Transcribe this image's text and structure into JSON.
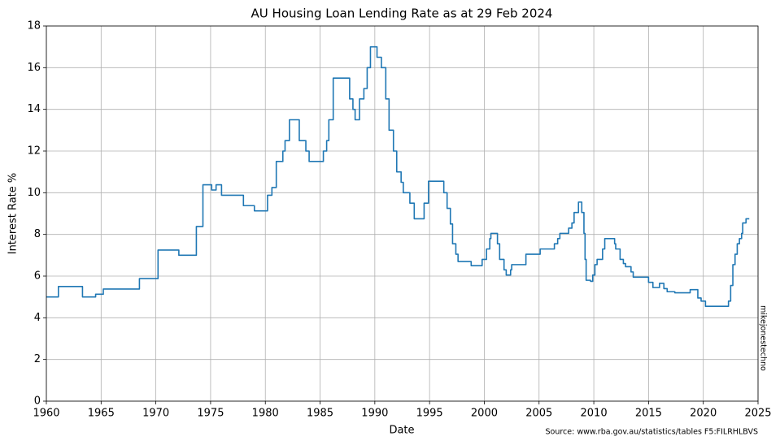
{
  "chart_data": {
    "type": "line",
    "drawstyle": "steps-post",
    "title": "AU Housing Loan Lending Rate as at 29 Feb 2024",
    "xlabel": "Date",
    "ylabel": "Interest Rate %",
    "source": "Source: www.rba.gov.au/statistics/tables F5:FILRHLBVS",
    "watermark": "mikejonestechno",
    "color": "#1f77b4",
    "grid": true,
    "xlim": [
      1960,
      2025
    ],
    "xticks": [
      1960,
      1965,
      1970,
      1975,
      1980,
      1985,
      1990,
      1995,
      2000,
      2005,
      2010,
      2015,
      2020,
      2025
    ],
    "ylim": [
      0,
      18
    ],
    "yticks": [
      0,
      2,
      4,
      6,
      8,
      10,
      12,
      14,
      16,
      18
    ],
    "x": [
      1960,
      1961.1,
      1963.3,
      1964.5,
      1965.2,
      1968.5,
      1970.2,
      1972.1,
      1973.7,
      1974.3,
      1975.1,
      1975.5,
      1976,
      1978,
      1979,
      1980.2,
      1980.6,
      1981,
      1981.6,
      1981.8,
      1982.2,
      1983.1,
      1983.7,
      1984,
      1985.3,
      1985.6,
      1985.8,
      1986.2,
      1987.7,
      1988,
      1988.2,
      1988.6,
      1989,
      1989.3,
      1989.6,
      1990.2,
      1990.6,
      1991,
      1991.3,
      1991.7,
      1992,
      1992.4,
      1992.6,
      1993.2,
      1993.6,
      1994.5,
      1994.9,
      1996.3,
      1996.6,
      1996.9,
      1997.1,
      1997.4,
      1997.6,
      1998.8,
      1999.8,
      2000.2,
      2000.5,
      2000.6,
      2001.2,
      2001.4,
      2001.8,
      2002,
      2002.4,
      2002.5,
      2003.8,
      2005.1,
      2006.4,
      2006.7,
      2006.9,
      2007.7,
      2008,
      2008.2,
      2008.6,
      2008.9,
      2009.1,
      2009.2,
      2009.3,
      2009.7,
      2009.9,
      2010.1,
      2010.3,
      2010.8,
      2011,
      2011.9,
      2012,
      2012.4,
      2012.7,
      2012.9,
      2013.4,
      2013.6,
      2015,
      2015.4,
      2016,
      2016.4,
      2016.7,
      2017.4,
      2018.8,
      2019.5,
      2019.8,
      2020.2,
      2022.3,
      2022.5,
      2022.7,
      2022.9,
      2023.1,
      2023.3,
      2023.5,
      2023.6,
      2023.9,
      2024.2
    ],
    "values": [
      5.0,
      5.5,
      5.0,
      5.13,
      5.38,
      5.88,
      7.25,
      7.0,
      8.38,
      10.38,
      10.13,
      10.38,
      9.88,
      9.38,
      9.13,
      9.88,
      10.25,
      11.5,
      12.0,
      12.5,
      13.5,
      12.5,
      12.0,
      11.5,
      12.0,
      12.5,
      13.5,
      15.5,
      14.5,
      14.0,
      13.5,
      14.5,
      15.0,
      16.0,
      17.0,
      16.5,
      16.0,
      14.5,
      13.0,
      12.0,
      11.0,
      10.5,
      10.0,
      9.5,
      8.75,
      9.5,
      10.55,
      10.0,
      9.25,
      8.5,
      7.55,
      7.05,
      6.7,
      6.5,
      6.8,
      7.3,
      7.8,
      8.05,
      7.55,
      6.8,
      6.3,
      6.05,
      6.3,
      6.55,
      7.05,
      7.3,
      7.55,
      7.8,
      8.05,
      8.3,
      8.55,
      9.05,
      9.55,
      9.05,
      8.05,
      6.8,
      5.8,
      5.75,
      6.05,
      6.55,
      6.8,
      7.3,
      7.8,
      7.55,
      7.3,
      6.8,
      6.6,
      6.45,
      6.2,
      5.95,
      5.7,
      5.45,
      5.65,
      5.4,
      5.25,
      5.2,
      5.35,
      4.95,
      4.8,
      4.55,
      4.8,
      5.55,
      6.55,
      7.05,
      7.55,
      7.8,
      8.05,
      8.55,
      8.75,
      8.75
    ]
  }
}
